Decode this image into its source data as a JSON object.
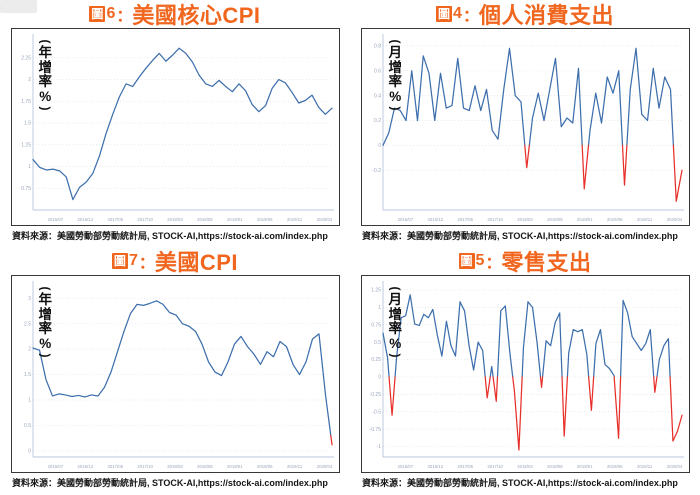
{
  "colors": {
    "accent": "#F1661F",
    "line": "#3E6FAD",
    "negative": "#E8302A",
    "grid": "#E4E4E4",
    "axis": "#B9C6DC",
    "tick_text": "#9AA6BC"
  },
  "chart_data": [
    {
      "type": "line",
      "figure_badge": "圖",
      "figure_number": "6",
      "separator": "：",
      "title": "美國核心CPI",
      "ylabel": "年增率%",
      "ylabel_paren_open": "(",
      "ylabel_paren_close": ")",
      "source": "資料來源：美國勞動部勞動統計局, STOCK-AI,https://stock-ai.com/index.php",
      "x_tick_labels": [
        "2016/07",
        "2016/12",
        "2017/05",
        "2017/10",
        "2018/03",
        "2018/08",
        "2019/01",
        "2019/06",
        "2019/11",
        "2020/04"
      ],
      "y_tick_labels": [
        "2.25",
        "2",
        "1.75",
        "1.5",
        "1.25",
        "1",
        "0.75"
      ],
      "ylim": [
        0.5,
        2.5
      ],
      "grid": true,
      "legend": "none",
      "red_below": null,
      "series": [
        {
          "name": "美國核心CPI",
          "values": [
            1.08,
            0.99,
            0.96,
            0.97,
            0.95,
            0.88,
            0.62,
            0.76,
            0.82,
            0.92,
            1.12,
            1.38,
            1.6,
            1.8,
            1.95,
            1.92,
            2.03,
            2.13,
            2.22,
            2.3,
            2.21,
            2.28,
            2.36,
            2.3,
            2.2,
            2.05,
            1.95,
            1.92,
            1.99,
            1.92,
            1.86,
            1.95,
            1.87,
            1.71,
            1.63,
            1.7,
            1.9,
            2.0,
            1.96,
            1.85,
            1.73,
            1.76,
            1.82,
            1.68,
            1.6,
            1.67
          ]
        }
      ]
    },
    {
      "type": "line",
      "figure_badge": "圖",
      "figure_number": "4",
      "separator": "：",
      "title": "個人消費支出",
      "ylabel": "月增率%",
      "ylabel_paren_open": "(",
      "ylabel_paren_close": ")",
      "source": "資料來源：美國勞動部勞動統計局, STOCK-AI,https://stock-ai.com/index.php",
      "x_tick_labels": [
        "2016/07",
        "2016/12",
        "2017/05",
        "2017/10",
        "2018/03",
        "2018/08",
        "2019/01",
        "2019/06",
        "2019/11",
        "2020/04"
      ],
      "y_tick_labels": [
        "0.8",
        "0.6",
        "0.4",
        "0.2",
        "0",
        "-0.2"
      ],
      "ylim": [
        -0.52,
        0.88
      ],
      "grid": true,
      "legend": "none",
      "red_below": 0,
      "series": [
        {
          "name": "個人消費支出",
          "values": [
            0.0,
            0.1,
            0.3,
            0.28,
            0.2,
            0.6,
            0.2,
            0.72,
            0.58,
            0.2,
            0.58,
            0.3,
            0.32,
            0.7,
            0.3,
            0.28,
            0.48,
            0.28,
            0.45,
            0.12,
            0.05,
            0.45,
            0.78,
            0.4,
            0.35,
            -0.18,
            0.22,
            0.42,
            0.2,
            0.45,
            0.7,
            0.15,
            0.22,
            0.18,
            0.62,
            -0.35,
            0.12,
            0.42,
            0.18,
            0.55,
            0.42,
            0.6,
            -0.32,
            0.45,
            0.78,
            0.25,
            0.2,
            0.62,
            0.3,
            0.55,
            0.45,
            -0.45,
            -0.2
          ]
        }
      ]
    },
    {
      "type": "line",
      "figure_badge": "圖",
      "figure_number": "7",
      "separator": "：",
      "title": "美國CPI",
      "ylabel": "年增率%",
      "ylabel_paren_open": "(",
      "ylabel_paren_close": ")",
      "source": "資料來源：美國勞動部勞動統計局, STOCK-AI,https://stock-ai.com/index.php",
      "x_tick_labels": [
        "2016/07",
        "2016/12",
        "2017/05",
        "2017/10",
        "2018/03",
        "2018/08",
        "2019/01",
        "2019/06",
        "2019/11",
        "2020/04"
      ],
      "y_tick_labels": [
        "3",
        "2.5",
        "2",
        "1.5",
        "1",
        "0.5",
        "0"
      ],
      "ylim": [
        -0.12,
        3.3
      ],
      "grid": true,
      "legend": "none",
      "red_below": 0.3,
      "series": [
        {
          "name": "美國CPI",
          "values": [
            2.02,
            1.98,
            1.4,
            1.08,
            1.12,
            1.1,
            1.07,
            1.09,
            1.06,
            1.1,
            1.08,
            1.25,
            1.55,
            1.95,
            2.35,
            2.7,
            2.88,
            2.86,
            2.9,
            2.95,
            2.88,
            2.72,
            2.67,
            2.5,
            2.45,
            2.35,
            2.1,
            1.75,
            1.55,
            1.48,
            1.75,
            2.1,
            2.25,
            2.05,
            1.9,
            1.7,
            1.95,
            1.85,
            2.15,
            2.05,
            1.7,
            1.5,
            1.75,
            2.2,
            2.3,
            1.1,
            0.12
          ]
        }
      ]
    },
    {
      "type": "line",
      "figure_badge": "圖",
      "figure_number": "5",
      "separator": "：",
      "title": "零售支出",
      "ylabel": "月增率%",
      "ylabel_paren_open": "(",
      "ylabel_paren_close": ")",
      "source": "資料來源：美國勞動部勞動統計局, STOCK-AI,https://stock-ai.com/index.php",
      "x_tick_labels": [
        "2016/07",
        "2016/12",
        "2017/05",
        "2017/10",
        "2018/03",
        "2018/08",
        "2019/01",
        "2019/06",
        "2019/11",
        "2020/04"
      ],
      "y_tick_labels": [
        "1.25",
        "1",
        "0.75",
        "0.5",
        "0.25",
        "0",
        "-0.25",
        "-0.5",
        "-0.75",
        "-1"
      ],
      "ylim": [
        -1.15,
        1.35
      ],
      "grid": true,
      "legend": "none",
      "red_below": 0,
      "series": [
        {
          "name": "零售支出",
          "values": [
            0.63,
            0.28,
            -0.55,
            0.28,
            0.85,
            0.88,
            1.18,
            0.76,
            0.74,
            0.9,
            0.85,
            0.97,
            0.6,
            0.3,
            0.8,
            0.45,
            0.3,
            1.08,
            0.95,
            0.45,
            0.1,
            0.5,
            0.38,
            -0.3,
            0.15,
            -0.35,
            0.95,
            1.02,
            0.35,
            -0.2,
            -1.05,
            0.42,
            1.08,
            1.0,
            0.5,
            -0.15,
            0.52,
            0.45,
            0.78,
            0.92,
            -0.85,
            0.35,
            0.68,
            0.65,
            0.68,
            0.32,
            -0.48,
            0.48,
            0.68,
            0.18,
            0.12,
            0.02,
            -0.88,
            1.1,
            0.92,
            0.58,
            0.48,
            0.38,
            0.48,
            0.68,
            -0.22,
            0.25,
            0.45,
            0.55,
            -0.92,
            -0.78,
            -0.55
          ]
        }
      ]
    }
  ]
}
